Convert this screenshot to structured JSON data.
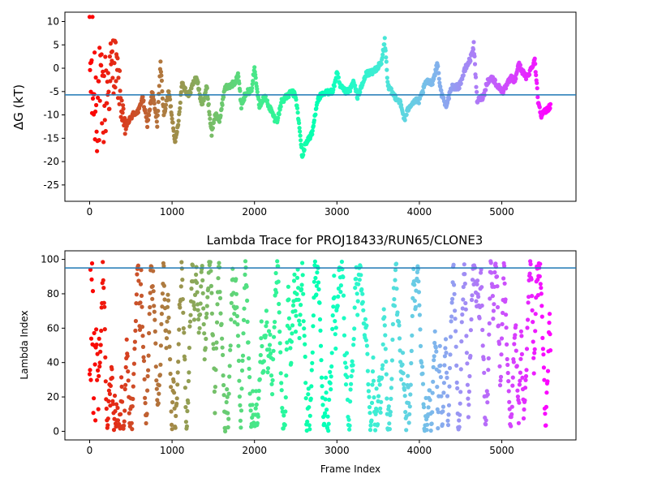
{
  "chart_data": [
    {
      "type": "scatter",
      "title": "",
      "xlabel": "",
      "ylabel": "ΔG (kT)",
      "xlim": [
        -300,
        5900
      ],
      "ylim": [
        -28.5,
        12
      ],
      "xticks": [
        "0",
        "1000",
        "2000",
        "3000",
        "4000",
        "5000"
      ],
      "yticks": [
        "10",
        "5",
        "0",
        "-5",
        "-10",
        "-15",
        "-20",
        "-25"
      ],
      "reference_line": {
        "y": -5.7,
        "color": "#1f77b4"
      },
      "colormap": "rainbow (red at frame 0 → violet at last frame)",
      "grid": false,
      "frames_total": 5590,
      "trace_anchors": [
        [
          0,
          0
        ],
        [
          60,
          -5
        ],
        [
          160,
          -8
        ],
        [
          300,
          2
        ],
        [
          360,
          -4
        ],
        [
          420,
          -13
        ],
        [
          520,
          -10
        ],
        [
          600,
          -9
        ],
        [
          640,
          -6
        ],
        [
          700,
          -12
        ],
        [
          760,
          -5
        ],
        [
          820,
          -12
        ],
        [
          860,
          1
        ],
        [
          900,
          -10
        ],
        [
          960,
          -5
        ],
        [
          1040,
          -16
        ],
        [
          1080,
          -11
        ],
        [
          1120,
          -3
        ],
        [
          1200,
          -6
        ],
        [
          1260,
          -3
        ],
        [
          1300,
          -2
        ],
        [
          1360,
          -8
        ],
        [
          1420,
          -4
        ],
        [
          1480,
          -14
        ],
        [
          1520,
          -10
        ],
        [
          1580,
          -11
        ],
        [
          1640,
          -4
        ],
        [
          1700,
          -4
        ],
        [
          1760,
          -3
        ],
        [
          1800,
          -1
        ],
        [
          1840,
          -8
        ],
        [
          1900,
          -5
        ],
        [
          1960,
          -5
        ],
        [
          2000,
          0
        ],
        [
          2060,
          -8
        ],
        [
          2120,
          -6
        ],
        [
          2200,
          -9
        ],
        [
          2250,
          -11
        ],
        [
          2280,
          -11
        ],
        [
          2330,
          -7
        ],
        [
          2400,
          -6
        ],
        [
          2450,
          -5
        ],
        [
          2500,
          -6
        ],
        [
          2540,
          -12
        ],
        [
          2580,
          -19
        ],
        [
          2620,
          -16
        ],
        [
          2700,
          -14
        ],
        [
          2760,
          -7
        ],
        [
          2800,
          -6
        ],
        [
          2900,
          -5
        ],
        [
          2950,
          -5
        ],
        [
          3000,
          -1
        ],
        [
          3040,
          -4
        ],
        [
          3100,
          -5
        ],
        [
          3150,
          -5
        ],
        [
          3200,
          -3
        ],
        [
          3250,
          -6
        ],
        [
          3300,
          -4
        ],
        [
          3360,
          -1
        ],
        [
          3420,
          -1
        ],
        [
          3480,
          0
        ],
        [
          3540,
          1
        ],
        [
          3580,
          6
        ],
        [
          3620,
          -4
        ],
        [
          3700,
          -6
        ],
        [
          3760,
          -7
        ],
        [
          3820,
          -11
        ],
        [
          3880,
          -8
        ],
        [
          3940,
          -7
        ],
        [
          4000,
          -7
        ],
        [
          4080,
          -3
        ],
        [
          4160,
          -3
        ],
        [
          4220,
          1
        ],
        [
          4260,
          -5
        ],
        [
          4320,
          -8
        ],
        [
          4400,
          -4
        ],
        [
          4480,
          -4
        ],
        [
          4560,
          0
        ],
        [
          4620,
          2
        ],
        [
          4660,
          5
        ],
        [
          4700,
          -7
        ],
        [
          4780,
          -6
        ],
        [
          4820,
          -3
        ],
        [
          4880,
          -2
        ],
        [
          4960,
          -4
        ],
        [
          5020,
          -5
        ],
        [
          5080,
          -3
        ],
        [
          5120,
          -2
        ],
        [
          5160,
          -3
        ],
        [
          5200,
          1
        ],
        [
          5260,
          -1
        ],
        [
          5300,
          -2
        ],
        [
          5360,
          0
        ],
        [
          5400,
          2
        ],
        [
          5440,
          -7
        ],
        [
          5480,
          -10
        ],
        [
          5540,
          -9
        ],
        [
          5590,
          -8
        ]
      ]
    },
    {
      "type": "scatter",
      "title": "Lambda Trace for PROJ18433/RUN65/CLONE3",
      "xlabel": "Frame Index",
      "ylabel": "Lambda Index",
      "xlim": [
        -300,
        5900
      ],
      "ylim": [
        -5,
        105
      ],
      "xticks": [
        "0",
        "1000",
        "2000",
        "3000",
        "4000",
        "5000"
      ],
      "yticks": [
        "100",
        "80",
        "60",
        "40",
        "20",
        "0"
      ],
      "reference_line": {
        "y": 95,
        "color": "#1f77b4"
      },
      "colormap": "rainbow (red at frame 0 → violet at last frame)",
      "grid": false,
      "frames_total": 5590,
      "lambda_range": [
        0,
        99
      ]
    }
  ]
}
